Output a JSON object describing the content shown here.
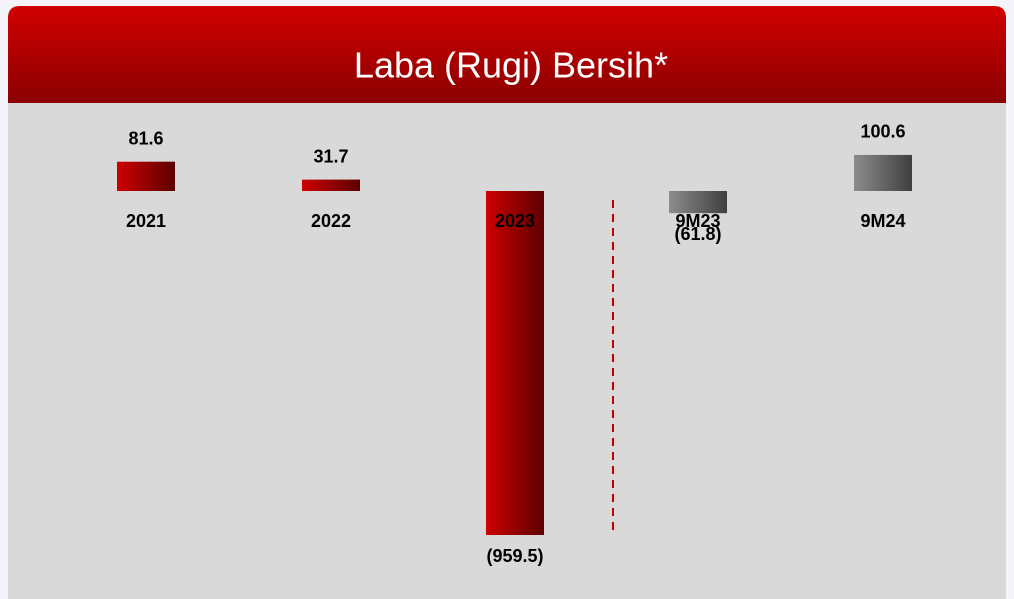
{
  "chart_data": {
    "type": "bar",
    "title": "Laba (Rugi) Bersih*",
    "categories": [
      "2021",
      "2022",
      "2023",
      "9M23",
      "9M24"
    ],
    "values": [
      81.6,
      31.7,
      -959.5,
      -61.8,
      100.6
    ],
    "value_labels": [
      "81.6",
      "31.7",
      "(959.5)",
      "(61.8)",
      "100.6"
    ],
    "colors": [
      "#cc0000",
      "#cc0000",
      "#cc0000",
      "#8c8c8c",
      "#8c8c8c"
    ]
  }
}
